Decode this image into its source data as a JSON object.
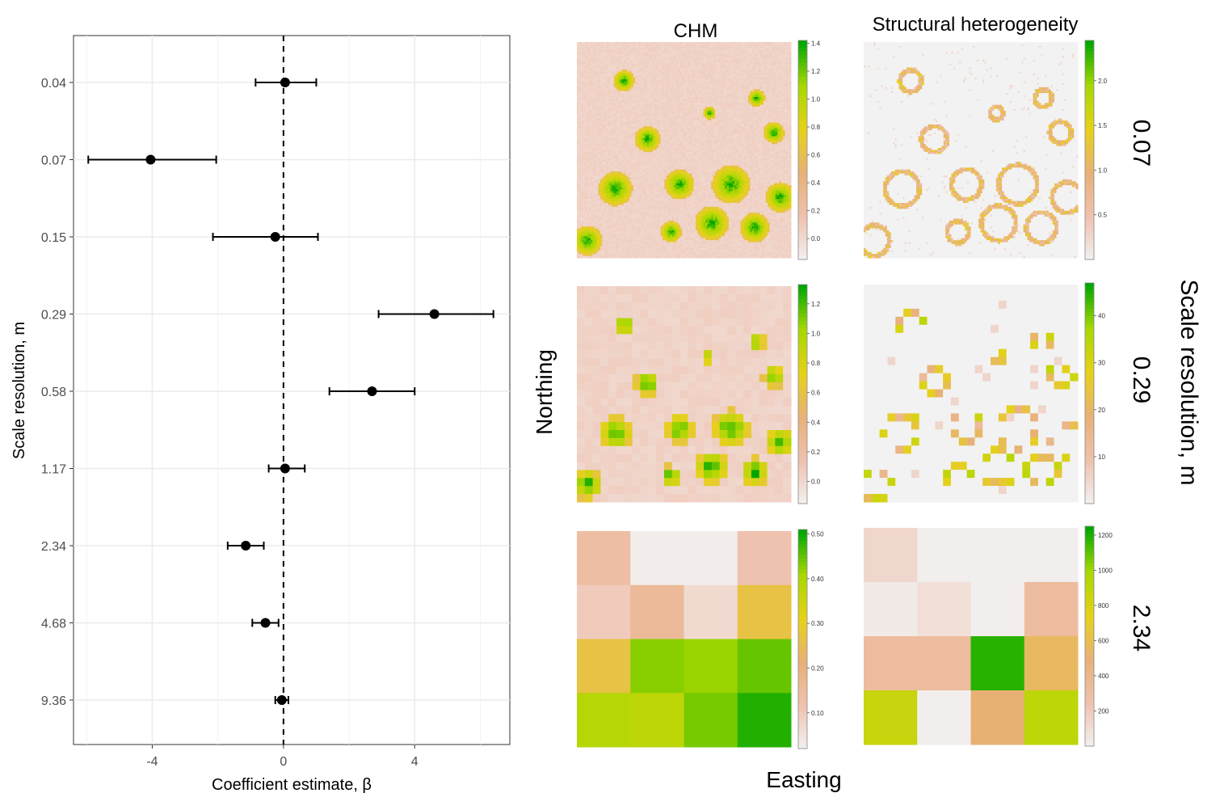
{
  "chart_data": [
    {
      "type": "scatter",
      "subtype": "coefficient-errorbar",
      "ylabel": "Scale resolution, m",
      "xlabel": "Coefficient estimate, β",
      "xlim": [
        -6.4,
        6.9
      ],
      "xticks": [
        -4,
        0,
        4
      ],
      "xtick_labels": [
        "-4",
        "0",
        "4"
      ],
      "categories": [
        "0.04",
        "0.07",
        "0.15",
        "0.29",
        "0.58",
        "1.17",
        "2.34",
        "4.68",
        "9.36"
      ],
      "estimates": [
        0.05,
        -4.05,
        -0.25,
        4.6,
        2.7,
        0.05,
        -1.15,
        -0.55,
        -0.05
      ],
      "ci_low": [
        -0.85,
        -5.95,
        -2.15,
        2.9,
        1.4,
        -0.45,
        -1.7,
        -0.95,
        -0.25
      ],
      "ci_high": [
        1.0,
        -2.05,
        1.05,
        6.4,
        4.0,
        0.65,
        -0.6,
        -0.15,
        0.15
      ],
      "reference_line": 0,
      "grid": true,
      "colors": {
        "point": "#000000",
        "grid": "#ebebeb",
        "panel_border": "#333333"
      }
    },
    {
      "type": "heatmap",
      "column_titles": [
        "CHM",
        "Structural heterogeneity"
      ],
      "row_labels": [
        "0.07",
        "0.29",
        "2.34"
      ],
      "side_label": "Scale resolution, m",
      "xlabel": "Easting",
      "ylabel": "Northing",
      "colorscale": [
        "#f2f2f2",
        "#efc2b0",
        "#e8b078",
        "#e6d11a",
        "#a8d800",
        "#00a600"
      ],
      "panels": [
        {
          "variable": "CHM",
          "resolution": "0.07",
          "legend_ticks": [
            "1.4",
            "1.2",
            "1.0",
            "0.8",
            "0.6",
            "0.4",
            "0.2",
            "0.0"
          ],
          "min": -0.15,
          "max": 1.42
        },
        {
          "variable": "Structural heterogeneity",
          "resolution": "0.07",
          "legend_ticks": [
            "2.0",
            "1.5",
            "1.0",
            "0.5"
          ],
          "min": 0.0,
          "max": 2.45
        },
        {
          "variable": "CHM",
          "resolution": "0.29",
          "legend_ticks": [
            "1.2",
            "1.0",
            "0.8",
            "0.6",
            "0.4",
            "0.2",
            "0.0"
          ],
          "min": -0.15,
          "max": 1.33
        },
        {
          "variable": "Structural heterogeneity",
          "resolution": "0.29",
          "legend_ticks": [
            "40",
            "30",
            "20",
            "10"
          ],
          "min": 0,
          "max": 47
        },
        {
          "variable": "CHM",
          "resolution": "2.34",
          "legend_ticks": [
            "0.50",
            "0.40",
            "0.30",
            "0.20",
            "0.10"
          ],
          "min": 0.02,
          "max": 0.51,
          "grid_values": [
            [
              0.14,
              0.03,
              0.03,
              0.12
            ],
            [
              0.1,
              0.16,
              0.07,
              0.27
            ],
            [
              0.27,
              0.43,
              0.42,
              0.45
            ],
            [
              0.39,
              0.38,
              0.44,
              0.49
            ]
          ]
        },
        {
          "variable": "Structural heterogeneity",
          "resolution": "2.34",
          "legend_ticks": [
            "1200",
            "1000",
            "800",
            "600",
            "400",
            "200"
          ],
          "min": 0,
          "max": 1250,
          "grid_values": [
            [
              140,
              20,
              10,
              20
            ],
            [
              40,
              100,
              20,
              330
            ],
            [
              330,
              330,
              1190,
              560
            ],
            [
              870,
              20,
              510,
              920
            ]
          ]
        }
      ]
    }
  ]
}
